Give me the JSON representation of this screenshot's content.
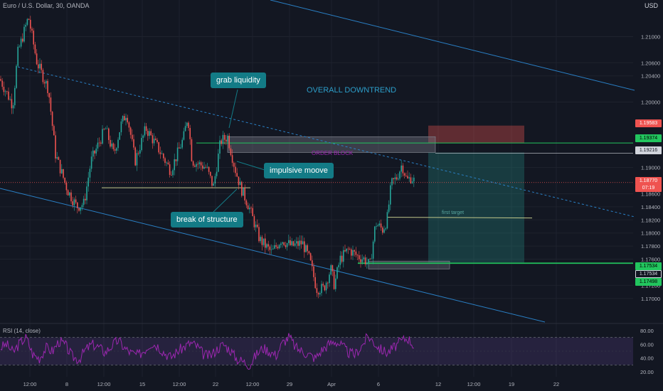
{
  "header": {
    "title": "Euro / U.S. Dollar, 30, OANDA",
    "currency": "USD"
  },
  "annotations": {
    "grab_liquidity": "grab liquidity",
    "impulsive_move": "impulsive moove",
    "break_of_structure": "break of structure",
    "overall_downtrend": "OVERALL DOWNTREND",
    "order_block": "ORDER BLOCK",
    "first_target": "first target"
  },
  "price_tags": {
    "tag1": "1.19583",
    "tag2": "1.19374",
    "tag3": "1.19216",
    "current_price": "1.18770",
    "countdown": "07:19",
    "tag5": "1.17534",
    "tag6": "1.17498",
    "tag7": "1.17534"
  },
  "colors": {
    "background": "#131722",
    "up": "#26a69a",
    "down": "#ef5350",
    "rsi": "#9c27b0",
    "trendline": "#2a80c6",
    "accent": "#137b86"
  },
  "chart_data": {
    "type": "candlestick",
    "title": "Euro / U.S. Dollar, 30, OANDA",
    "y_unit": "USD",
    "yrange": [
      1.1665,
      1.2145
    ],
    "yticks": [
      "1.21000",
      "1.20600",
      "1.20400",
      "1.20000",
      "1.19000",
      "1.18600",
      "1.18400",
      "1.18200",
      "1.18000",
      "1.17800",
      "1.17600",
      "1.17200",
      "1.17000"
    ],
    "xticks": [
      "12:00",
      "8",
      "12:00",
      "15",
      "12:00",
      "22",
      "12:00",
      "29",
      "Apr",
      "6",
      "12",
      "12:00",
      "19",
      "22"
    ],
    "price_path": [
      [
        0,
        1.2035
      ],
      [
        18,
        1.1995
      ],
      [
        25,
        1.2075
      ],
      [
        40,
        1.213
      ],
      [
        52,
        1.206
      ],
      [
        68,
        1.202
      ],
      [
        78,
        1.192
      ],
      [
        95,
        1.1865
      ],
      [
        108,
        1.184
      ],
      [
        118,
        1.1845
      ],
      [
        128,
        1.191
      ],
      [
        148,
        1.196
      ],
      [
        160,
        1.192
      ],
      [
        170,
        1.1965
      ],
      [
        178,
        1.1985
      ],
      [
        190,
        1.191
      ],
      [
        205,
        1.196
      ],
      [
        222,
        1.193
      ],
      [
        240,
        1.1895
      ],
      [
        258,
        1.1945
      ],
      [
        264,
        1.198
      ],
      [
        270,
        1.191
      ],
      [
        290,
        1.19
      ],
      [
        300,
        1.187
      ],
      [
        310,
        1.194
      ],
      [
        320,
        1.1947
      ],
      [
        330,
        1.19
      ],
      [
        338,
        1.187
      ],
      [
        350,
        1.184
      ],
      [
        365,
        1.179
      ],
      [
        382,
        1.177
      ],
      [
        395,
        1.179
      ],
      [
        410,
        1.178
      ],
      [
        425,
        1.1785
      ],
      [
        435,
        1.176
      ],
      [
        445,
        1.1715
      ],
      [
        455,
        1.1715
      ],
      [
        465,
        1.1745
      ],
      [
        470,
        1.172
      ],
      [
        478,
        1.176
      ],
      [
        490,
        1.1775
      ],
      [
        502,
        1.1765
      ],
      [
        512,
        1.176
      ],
      [
        520,
        1.175
      ],
      [
        528,
        1.1815
      ],
      [
        538,
        1.1805
      ],
      [
        544,
        1.182
      ],
      [
        550,
        1.1875
      ],
      [
        558,
        1.1885
      ],
      [
        565,
        1.1905
      ],
      [
        572,
        1.188
      ],
      [
        578,
        1.1885
      ],
      [
        582,
        1.188
      ]
    ],
    "rsi": {
      "label": "RSI (14, close)",
      "range": [
        20,
        80
      ],
      "ticks": [
        "80.00",
        "60.00",
        "40.00",
        "20.00"
      ],
      "levels": [
        70,
        30
      ],
      "values": [
        55,
        60,
        48,
        62,
        70,
        45,
        40,
        55,
        50,
        65,
        58,
        42,
        38,
        52,
        60,
        56,
        48,
        58,
        66,
        54,
        47,
        44,
        52,
        62,
        58,
        48,
        41,
        50,
        56,
        62,
        57,
        45,
        43,
        53,
        60,
        52,
        39,
        35,
        30,
        45,
        55,
        50,
        44,
        62,
        71,
        55,
        50,
        45,
        40,
        52,
        60,
        65,
        58,
        48,
        45,
        57,
        72,
        62,
        52,
        48,
        56,
        64,
        70,
        58
      ]
    },
    "zones": {
      "order_block": [
        1.1923,
        1.1947
      ],
      "demand": [
        1.1745,
        1.1757
      ],
      "stop": [
        1.1937,
        1.1958
      ],
      "target": [
        1.1755,
        1.1923
      ],
      "first_target_level": 1.1824
    },
    "levels": {
      "liquidity": 1.1869,
      "green_top": 1.19374,
      "green_bottom1": 1.17534,
      "green_bottom2": 1.17498
    }
  }
}
